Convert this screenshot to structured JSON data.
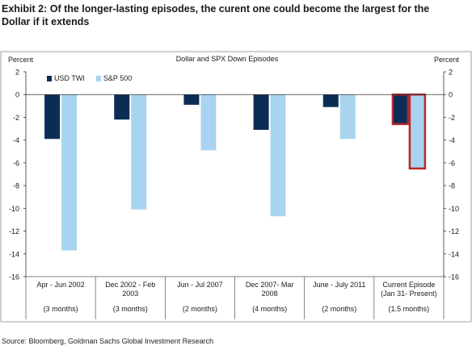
{
  "exhibit": {
    "title": "Exhibit 2: Of the longer-lasting episodes, the curent one could become the largest for the Dollar if it extends",
    "source": "Source: Bloomberg, Goldman Sachs Global Investment Research"
  },
  "chart_data": {
    "type": "bar",
    "title": "Dollar and SPX Down Episodes",
    "ylabel_left": "Percent",
    "ylabel_right": "Percent",
    "ylim": [
      -16,
      2
    ],
    "yticks": [
      2,
      0,
      -2,
      -4,
      -6,
      -8,
      -10,
      -12,
      -14,
      -16
    ],
    "legend_position": "top-left",
    "categories": [
      "Apr - Jun 2002",
      "Dec 2002 - Feb 2003",
      "Jun - Jul 2007",
      "Dec 2007- Mar 2008",
      "June - July 2011",
      "Current Episode (Jan 31- Present)"
    ],
    "durations": [
      "(3 months)",
      "(3 months)",
      "(2 months)",
      "(4 months)",
      "(2 months)",
      "(1.5 months)"
    ],
    "series": [
      {
        "name": "USD TWI",
        "color": "#0b2d55",
        "values": [
          -3.9,
          -2.2,
          -0.9,
          -3.1,
          -1.1,
          -2.6
        ]
      },
      {
        "name": "S&P 500",
        "color": "#a9d4ef",
        "values": [
          -13.7,
          -10.1,
          -4.9,
          -10.7,
          -3.9,
          -6.5
        ]
      }
    ],
    "highlight": {
      "category_index": 5,
      "outline_color": "#b5292a"
    }
  }
}
